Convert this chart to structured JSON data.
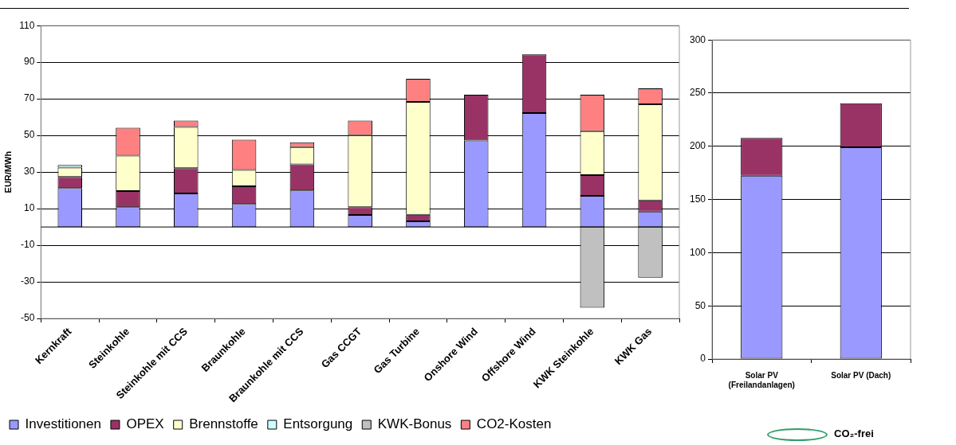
{
  "chart_data": [
    {
      "type": "bar",
      "stacked": true,
      "ylabel": "EUR/MWh",
      "ylim": [
        -50,
        110
      ],
      "yticks": [
        -50,
        -30,
        -10,
        10,
        30,
        50,
        70,
        90,
        110
      ],
      "grid": "y",
      "legend": "bottom",
      "categories": [
        "Kernkraft",
        "Steinkohle",
        "Steinkohle mit CCS",
        "Braunkohle",
        "Braunkohle mit CCS",
        "Gas CCGT",
        "Gas Turbine",
        "Onshore Wind",
        "Offshore Wind",
        "KWK Steinkohle",
        "KWK Gas"
      ],
      "series": [
        {
          "name": "Investitionen",
          "color": "#9999ff",
          "values": [
            21.3,
            10.8,
            18.3,
            12.6,
            20,
            6.6,
            3.1,
            47.2,
            62.3,
            17,
            8.4
          ]
        },
        {
          "name": "OPEX",
          "color": "#993366",
          "values": [
            6.1,
            8.8,
            13.8,
            9.6,
            14.2,
            4.2,
            3.6,
            25.1,
            32,
            11.3,
            6.1
          ]
        },
        {
          "name": "Brennstoffe",
          "color": "#ffffcc",
          "values": [
            5.1,
            19.4,
            22.5,
            9,
            9.5,
            39.4,
            61.6,
            null,
            null,
            24,
            52.5
          ]
        },
        {
          "name": "Entsorgung",
          "color": "#ccffff",
          "values": [
            1.4,
            null,
            null,
            null,
            null,
            null,
            null,
            null,
            null,
            null,
            null
          ]
        },
        {
          "name": "KWK-Bonus",
          "color": "#c0c0c0",
          "values": [
            null,
            null,
            null,
            null,
            null,
            null,
            null,
            null,
            null,
            -44.1,
            -27.7
          ]
        },
        {
          "name": "CO2-Kosten",
          "color": "#ff8080",
          "values": [
            null,
            15.2,
            3.5,
            16.5,
            2.6,
            7.9,
            12.6,
            null,
            null,
            20,
            8.7
          ]
        }
      ]
    },
    {
      "type": "bar",
      "stacked": true,
      "ylim": [
        0,
        300
      ],
      "yticks": [
        0,
        50,
        100,
        150,
        200,
        250,
        300
      ],
      "grid": "y",
      "categories": [
        "Solar PV (Freilandanlagen)",
        "Solar PV (Dach)"
      ],
      "series": [
        {
          "color": "#9999ff",
          "values": [
            172.4,
            199.1
          ]
        },
        {
          "color": "#993366",
          "values": [
            35.5,
            41.3
          ]
        }
      ],
      "annotations": [
        "CO₂-frei"
      ]
    }
  ]
}
